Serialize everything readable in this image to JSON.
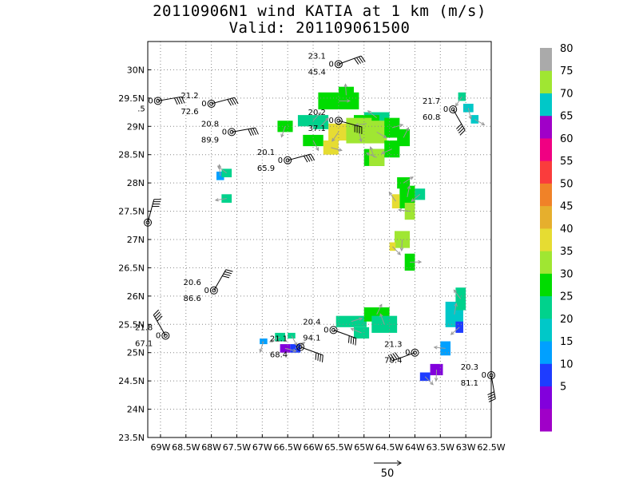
{
  "title": {
    "line1": "20110906N1 wind KATIA at 1 km (m/s)",
    "line2": "Valid: 201109061500"
  },
  "map": {
    "lon_range": [
      -69.25,
      -62.5
    ],
    "lat_range": [
      23.5,
      30.5
    ],
    "lon_ticks": [
      {
        "v": -69.0,
        "label": "69W"
      },
      {
        "v": -68.5,
        "label": "68.5W"
      },
      {
        "v": -68.0,
        "label": "68W"
      },
      {
        "v": -67.5,
        "label": "67.5W"
      },
      {
        "v": -67.0,
        "label": "67W"
      },
      {
        "v": -66.5,
        "label": "66.5W"
      },
      {
        "v": -66.0,
        "label": "66W"
      },
      {
        "v": -65.5,
        "label": "65.5W"
      },
      {
        "v": -65.0,
        "label": "65W"
      },
      {
        "v": -64.5,
        "label": "64.5W"
      },
      {
        "v": -64.0,
        "label": "64W"
      },
      {
        "v": -63.5,
        "label": "63.5W"
      },
      {
        "v": -63.0,
        "label": "63W"
      },
      {
        "v": -62.5,
        "label": "62.5W"
      }
    ],
    "lat_ticks": [
      {
        "v": 23.5,
        "label": "23.5N"
      },
      {
        "v": 24.0,
        "label": "24N"
      },
      {
        "v": 24.5,
        "label": "24.5N"
      },
      {
        "v": 25.0,
        "label": "25N"
      },
      {
        "v": 25.5,
        "label": "25.5N"
      },
      {
        "v": 26.0,
        "label": "26N"
      },
      {
        "v": 26.5,
        "label": "26.5N"
      },
      {
        "v": 27.0,
        "label": "27N"
      },
      {
        "v": 27.5,
        "label": "27.5N"
      },
      {
        "v": 28.0,
        "label": "28N"
      },
      {
        "v": 28.5,
        "label": "28.5N"
      },
      {
        "v": 29.0,
        "label": "29N"
      },
      {
        "v": 29.5,
        "label": "29.5N"
      },
      {
        "v": 30.0,
        "label": "30N"
      }
    ],
    "grid": "dotted"
  },
  "colorbar": {
    "levels": [
      {
        "label": "",
        "color": "#a000c8"
      },
      {
        "label": "5",
        "color": "#8200dc"
      },
      {
        "label": "10",
        "color": "#1e3cff"
      },
      {
        "label": "15",
        "color": "#00a0ff"
      },
      {
        "label": "20",
        "color": "#00c8c8"
      },
      {
        "label": "25",
        "color": "#00d28c"
      },
      {
        "label": "30",
        "color": "#00dc00"
      },
      {
        "label": "35",
        "color": "#a0e632"
      },
      {
        "label": "40",
        "color": "#e6dc32"
      },
      {
        "label": "45",
        "color": "#e6af2d"
      },
      {
        "label": "50",
        "color": "#f08228"
      },
      {
        "label": "55",
        "color": "#fa3c3c"
      },
      {
        "label": "60",
        "color": "#f00082"
      },
      {
        "label": "65",
        "color": "#a000c8"
      },
      {
        "label": "70",
        "color": "#00c8c8"
      },
      {
        "label": "75",
        "color": "#a0e632"
      },
      {
        "label": "80",
        "color": "#aaaaaa"
      }
    ]
  },
  "wind_cells": [
    {
      "lon": -65.9,
      "lat": 29.3,
      "w": 0.8,
      "h": 0.3,
      "color": "#00dc00"
    },
    {
      "lon": -66.3,
      "lat": 29.0,
      "w": 0.6,
      "h": 0.2,
      "color": "#00d28c"
    },
    {
      "lon": -65.5,
      "lat": 29.4,
      "w": 0.3,
      "h": 0.3,
      "color": "#00dc00"
    },
    {
      "lon": -65.0,
      "lat": 29.05,
      "w": 0.5,
      "h": 0.2,
      "color": "#00d28c"
    },
    {
      "lon": -65.2,
      "lat": 28.9,
      "w": 0.5,
      "h": 0.3,
      "color": "#00dc00"
    },
    {
      "lon": -65.7,
      "lat": 28.75,
      "w": 0.4,
      "h": 0.3,
      "color": "#e6dc32"
    },
    {
      "lon": -65.35,
      "lat": 28.7,
      "w": 0.5,
      "h": 0.45,
      "color": "#a0e632"
    },
    {
      "lon": -64.95,
      "lat": 28.7,
      "w": 0.4,
      "h": 0.4,
      "color": "#a0e632"
    },
    {
      "lon": -64.6,
      "lat": 28.8,
      "w": 0.3,
      "h": 0.35,
      "color": "#00dc00"
    },
    {
      "lon": -64.35,
      "lat": 28.65,
      "w": 0.25,
      "h": 0.3,
      "color": "#00dc00"
    },
    {
      "lon": -65.0,
      "lat": 28.3,
      "w": 0.4,
      "h": 0.3,
      "color": "#00dc00"
    },
    {
      "lon": -64.9,
      "lat": 28.3,
      "w": 0.3,
      "h": 0.3,
      "color": "#a0e632"
    },
    {
      "lon": -64.6,
      "lat": 28.45,
      "w": 0.3,
      "h": 0.3,
      "color": "#00dc00"
    },
    {
      "lon": -66.7,
      "lat": 28.9,
      "w": 0.3,
      "h": 0.2,
      "color": "#00dc00"
    },
    {
      "lon": -66.2,
      "lat": 28.65,
      "w": 0.4,
      "h": 0.2,
      "color": "#00dc00"
    },
    {
      "lon": -65.8,
      "lat": 28.5,
      "w": 0.3,
      "h": 0.25,
      "color": "#e6dc32"
    },
    {
      "lon": -64.35,
      "lat": 27.9,
      "w": 0.25,
      "h": 0.2,
      "color": "#00dc00"
    },
    {
      "lon": -64.3,
      "lat": 27.55,
      "w": 0.3,
      "h": 0.4,
      "color": "#00dc00"
    },
    {
      "lon": -64.45,
      "lat": 27.55,
      "w": 0.15,
      "h": 0.25,
      "color": "#e6dc32"
    },
    {
      "lon": -64.2,
      "lat": 27.35,
      "w": 0.2,
      "h": 0.3,
      "color": "#a0e632"
    },
    {
      "lon": -64.0,
      "lat": 27.7,
      "w": 0.2,
      "h": 0.2,
      "color": "#00d28c"
    },
    {
      "lon": -64.4,
      "lat": 26.85,
      "w": 0.3,
      "h": 0.3,
      "color": "#a0e632"
    },
    {
      "lon": -64.5,
      "lat": 26.8,
      "w": 0.12,
      "h": 0.15,
      "color": "#e6dc32"
    },
    {
      "lon": -64.2,
      "lat": 26.45,
      "w": 0.2,
      "h": 0.3,
      "color": "#00dc00"
    },
    {
      "lon": -66.0,
      "lat": 28.95,
      "w": 0.3,
      "h": 0.1,
      "color": "#00d28c"
    },
    {
      "lon": -67.9,
      "lat": 28.05,
      "w": 0.15,
      "h": 0.15,
      "color": "#00a0ff"
    },
    {
      "lon": -67.8,
      "lat": 28.1,
      "w": 0.2,
      "h": 0.15,
      "color": "#00d28c"
    },
    {
      "lon": -67.8,
      "lat": 27.65,
      "w": 0.2,
      "h": 0.15,
      "color": "#00d28c"
    },
    {
      "lon": -63.15,
      "lat": 29.45,
      "w": 0.15,
      "h": 0.15,
      "color": "#00d28c"
    },
    {
      "lon": -63.05,
      "lat": 29.25,
      "w": 0.2,
      "h": 0.15,
      "color": "#00c8c8"
    },
    {
      "lon": -62.9,
      "lat": 29.05,
      "w": 0.15,
      "h": 0.15,
      "color": "#00c8c8"
    },
    {
      "lon": -65.55,
      "lat": 25.45,
      "w": 0.6,
      "h": 0.2,
      "color": "#00d28c"
    },
    {
      "lon": -65.0,
      "lat": 25.55,
      "w": 0.5,
      "h": 0.25,
      "color": "#00dc00"
    },
    {
      "lon": -64.85,
      "lat": 25.35,
      "w": 0.5,
      "h": 0.3,
      "color": "#00d28c"
    },
    {
      "lon": -65.2,
      "lat": 25.25,
      "w": 0.3,
      "h": 0.2,
      "color": "#00d28c"
    },
    {
      "lon": -66.75,
      "lat": 25.2,
      "w": 0.2,
      "h": 0.15,
      "color": "#00d28c"
    },
    {
      "lon": -67.05,
      "lat": 25.15,
      "w": 0.15,
      "h": 0.1,
      "color": "#00a0ff"
    },
    {
      "lon": -66.5,
      "lat": 25.25,
      "w": 0.15,
      "h": 0.1,
      "color": "#00d28c"
    },
    {
      "lon": -66.65,
      "lat": 25.0,
      "w": 0.2,
      "h": 0.15,
      "color": "#8200dc"
    },
    {
      "lon": -66.45,
      "lat": 25.0,
      "w": 0.2,
      "h": 0.15,
      "color": "#1e3cff"
    },
    {
      "lon": -63.4,
      "lat": 25.45,
      "w": 0.35,
      "h": 0.45,
      "color": "#00c8c8"
    },
    {
      "lon": -63.2,
      "lat": 25.75,
      "w": 0.2,
      "h": 0.4,
      "color": "#00d28c"
    },
    {
      "lon": -63.5,
      "lat": 24.95,
      "w": 0.2,
      "h": 0.25,
      "color": "#00a0ff"
    },
    {
      "lon": -63.2,
      "lat": 25.35,
      "w": 0.15,
      "h": 0.2,
      "color": "#1e3cff"
    },
    {
      "lon": -63.7,
      "lat": 24.6,
      "w": 0.25,
      "h": 0.2,
      "color": "#8200dc"
    },
    {
      "lon": -63.9,
      "lat": 24.5,
      "w": 0.2,
      "h": 0.15,
      "color": "#1e3cff"
    }
  ],
  "stations": [
    {
      "lon": -65.5,
      "lat": 30.1,
      "top": "23.1",
      "mid": "0",
      "bottom": "45.4",
      "labels_side": "left"
    },
    {
      "lon": -69.05,
      "lat": 29.45,
      "top": "",
      "mid": "0",
      "bottom": ".5",
      "labels_side": "left"
    },
    {
      "lon": -68.0,
      "lat": 29.4,
      "top": "21.2",
      "mid": "0",
      "bottom": "72.6",
      "labels_side": "left"
    },
    {
      "lon": -65.5,
      "lat": 29.1,
      "top": "20.2",
      "mid": "0",
      "bottom": "37.1",
      "labels_side": "left"
    },
    {
      "lon": -63.25,
      "lat": 29.3,
      "top": "21.7",
      "mid": "0",
      "bottom": "60.8",
      "labels_side": "left"
    },
    {
      "lon": -67.6,
      "lat": 28.9,
      "top": "20.8",
      "mid": "0",
      "bottom": "89.9",
      "labels_side": "left"
    },
    {
      "lon": -66.5,
      "lat": 28.4,
      "top": "20.1",
      "mid": "0",
      "bottom": "65.9",
      "labels_side": "left"
    },
    {
      "lon": -69.25,
      "lat": 27.3,
      "top": "",
      "mid": "",
      "bottom": "",
      "labels_side": "left"
    },
    {
      "lon": -67.95,
      "lat": 26.1,
      "top": "20.6",
      "mid": "0",
      "bottom": "86.6",
      "labels_side": "left"
    },
    {
      "lon": -65.6,
      "lat": 25.4,
      "top": "20.4",
      "mid": "0",
      "bottom": "94.1",
      "labels_side": "left"
    },
    {
      "lon": -68.9,
      "lat": 25.3,
      "top": "21.8",
      "mid": "0",
      "bottom": "67.1",
      "labels_side": "left"
    },
    {
      "lon": -66.25,
      "lat": 25.1,
      "top": "21.1",
      "mid": "",
      "bottom": "68.4",
      "labels_side": "left"
    },
    {
      "lon": -64.0,
      "lat": 25.0,
      "top": "21.3",
      "mid": "0",
      "bottom": "70.4",
      "labels_side": "left"
    },
    {
      "lon": -62.5,
      "lat": 24.6,
      "top": "20.3",
      "mid": "0",
      "bottom": "81.1",
      "labels_side": "left"
    }
  ],
  "vector_scale": {
    "label": "50"
  }
}
